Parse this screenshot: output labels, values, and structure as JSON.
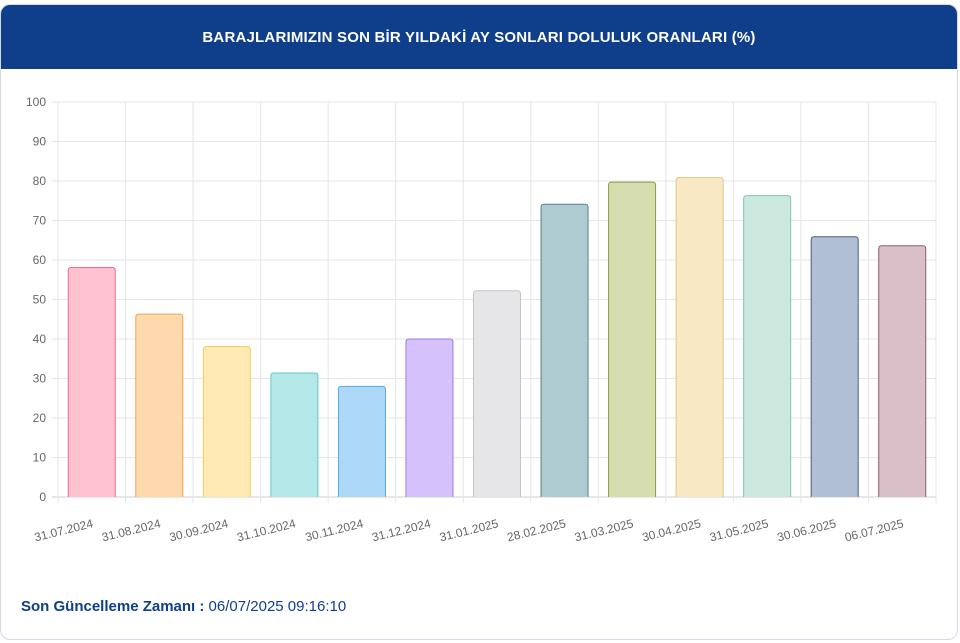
{
  "header": {
    "title": "BARAJLARIMIZIN SON BİR YILDAKİ AY SONLARI DOLULUK ORANLARI (%)"
  },
  "footer": {
    "label": "Son Güncelleme Zamanı :",
    "value": " 06/07/2025 09:16:10"
  },
  "colors": {
    "header_bg": "#0f3f8a",
    "footer_text": "#0f3f8a"
  },
  "chart_data": {
    "type": "bar",
    "title": "BARAJLARIMIZIN SON BİR YILDAKİ AY SONLARI DOLULUK ORANLARI (%)",
    "xlabel": "",
    "ylabel": "",
    "ylim": [
      0,
      100
    ],
    "yticks": [
      0,
      10,
      20,
      30,
      40,
      50,
      60,
      70,
      80,
      90,
      100
    ],
    "grid": true,
    "categories": [
      "31.07.2024",
      "31.08.2024",
      "30.09.2024",
      "31.10.2024",
      "30.11.2024",
      "31.12.2024",
      "31.01.2025",
      "28.02.2025",
      "31.03.2025",
      "30.04.2025",
      "31.05.2025",
      "30.06.2025",
      "06.07.2025"
    ],
    "values": [
      58.1,
      46.3,
      38.1,
      31.4,
      28.0,
      40.0,
      52.2,
      74.1,
      79.7,
      80.9,
      76.3,
      65.9,
      63.6
    ],
    "bar_fill_colors": [
      "#ffc2d1",
      "#ffd9ae",
      "#ffe9b5",
      "#b5e9e9",
      "#aed8f7",
      "#d5c2fc",
      "#e6e6e8",
      "#aecbd1",
      "#d6ddb0",
      "#f8e8c3",
      "#cae8de",
      "#b1bfd5",
      "#d8bfc8"
    ],
    "bar_border_colors": [
      "#ef6c89",
      "#f6a04d",
      "#f2cc5c",
      "#67c5c5",
      "#58a9e4",
      "#9c78ee",
      "#c3c3c8",
      "#5b7f89",
      "#8e9a45",
      "#e6c87c",
      "#84c4ac",
      "#4b5e82",
      "#8f5b6c"
    ]
  }
}
